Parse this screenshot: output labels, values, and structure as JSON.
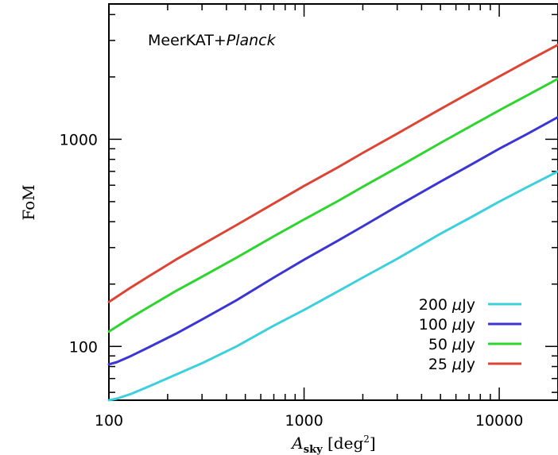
{
  "chart_data": {
    "type": "line",
    "title": "",
    "annotation": {
      "main": "MeerKAT+",
      "italic": "Planck"
    },
    "xlabel": {
      "symbol": "A",
      "subscript": "sky",
      "unit": "[deg",
      "unit_sup": "2",
      "unit_close": "]"
    },
    "ylabel": "FoM",
    "x_scale": "log",
    "y_scale": "log",
    "xlim": [
      100,
      20000
    ],
    "ylim": [
      55,
      4500
    ],
    "x_ticks": [
      100,
      1000,
      10000
    ],
    "x_tick_labels": [
      "100",
      "1000",
      "10000"
    ],
    "y_ticks": [
      100,
      1000
    ],
    "y_tick_labels": [
      "100",
      "1000"
    ],
    "grid": false,
    "legend_position": "bottom-right",
    "series": [
      {
        "name": "200 μJy",
        "flux": "200",
        "unit": "μJy",
        "color": "#3cd0dd",
        "x": [
          100,
          110,
          130,
          160,
          220,
          300,
          450,
          700,
          1000,
          1500,
          2000,
          3000,
          5000,
          7000,
          10000,
          14000,
          20000
        ],
        "y": [
          55,
          56,
          59,
          64,
          73,
          83,
          100,
          126,
          150,
          185,
          215,
          265,
          350,
          415,
          500,
          590,
          700
        ]
      },
      {
        "name": "100 μJy",
        "flux": "100",
        "unit": "μJy",
        "color": "#3b35d4",
        "x": [
          100,
          110,
          130,
          160,
          220,
          300,
          450,
          700,
          1000,
          1500,
          2000,
          3000,
          5000,
          7000,
          10000,
          14000,
          20000
        ],
        "y": [
          82,
          84,
          90,
          99,
          115,
          135,
          167,
          215,
          262,
          325,
          380,
          475,
          625,
          745,
          900,
          1065,
          1280
        ]
      },
      {
        "name": "50 μJy",
        "flux": "50",
        "unit": "μJy",
        "color": "#2fd52f",
        "x": [
          100,
          130,
          160,
          220,
          300,
          450,
          700,
          1000,
          1500,
          2000,
          3000,
          5000,
          7000,
          10000,
          14000,
          20000
        ],
        "y": [
          118,
          138,
          155,
          185,
          217,
          268,
          340,
          410,
          505,
          590,
          730,
          960,
          1145,
          1380,
          1635,
          1960
        ]
      },
      {
        "name": "25 μJy",
        "flux": "25",
        "unit": "μJy",
        "color": "#dd4433",
        "x": [
          100,
          130,
          160,
          220,
          300,
          450,
          700,
          1000,
          1500,
          2000,
          3000,
          5000,
          7000,
          10000,
          14000,
          20000
        ],
        "y": [
          164,
          193,
          218,
          262,
          310,
          385,
          490,
          595,
          735,
          860,
          1065,
          1400,
          1670,
          2010,
          2390,
          2860
        ]
      }
    ]
  }
}
